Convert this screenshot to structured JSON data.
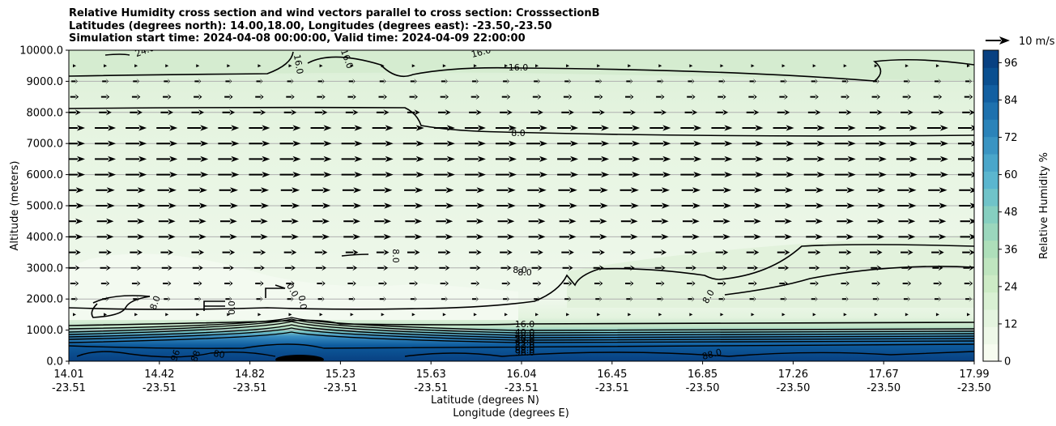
{
  "titles": {
    "line1": "Relative Humidity cross section and wind vectors parallel to cross section: CrosssectionB",
    "line2": "Latitudes (degrees north): 14.00,18.00, Longitudes (degrees east): -23.50,-23.50",
    "line3": "Simulation start time: 2024-04-08 00:00:00, Valid time: 2024-04-09 22:00:00"
  },
  "chart_data": {
    "type": "heatmap",
    "xlabel": "Latitude (degrees N)",
    "xlabel2": "Longitude (degrees E)",
    "ylabel": "Altitude (meters)",
    "ylim": [
      0,
      10000
    ],
    "grid": "horizontal",
    "x_ticks": [
      {
        "lat": "14.01",
        "lon": "-23.51"
      },
      {
        "lat": "14.42",
        "lon": "-23.51"
      },
      {
        "lat": "14.82",
        "lon": "-23.51"
      },
      {
        "lat": "15.23",
        "lon": "-23.51"
      },
      {
        "lat": "15.63",
        "lon": "-23.51"
      },
      {
        "lat": "16.04",
        "lon": "-23.51"
      },
      {
        "lat": "16.45",
        "lon": "-23.51"
      },
      {
        "lat": "16.85",
        "lon": "-23.50"
      },
      {
        "lat": "17.26",
        "lon": "-23.50"
      },
      {
        "lat": "17.67",
        "lon": "-23.50"
      },
      {
        "lat": "17.99",
        "lon": "-23.50"
      }
    ],
    "y_ticks": [
      "0.0",
      "1000.0",
      "2000.0",
      "3000.0",
      "4000.0",
      "5000.0",
      "6000.0",
      "7000.0",
      "8000.0",
      "9000.0",
      "10000.0"
    ],
    "colorbar": {
      "label": "Relative Humidity %",
      "ticks": [
        "0",
        "12",
        "24",
        "36",
        "48",
        "60",
        "72",
        "84",
        "96"
      ],
      "range": [
        0,
        100
      ]
    },
    "quiver_key": "10 m/s",
    "contour_labels": [
      "24.0",
      "16.0",
      "16.0",
      "16.0",
      "16.0",
      "8.0",
      "8.0",
      "8.0",
      "8.0",
      "8.0",
      "0.0",
      "0.0",
      "0.0",
      "8.0",
      "16.0",
      "40.0",
      "48.0",
      "56.0",
      "64.0",
      "72.0",
      "80.0",
      "88.0",
      "96.0",
      "80",
      "88",
      "96",
      "88.0"
    ],
    "wind": {
      "levels_m": [
        9500,
        9000,
        8500,
        8000,
        7500,
        7000,
        6500,
        6000,
        5500,
        5000,
        4500,
        4000,
        3500,
        3000,
        2500,
        2000,
        1500
      ],
      "speed_ms": [
        2,
        3,
        4,
        6,
        10,
        10,
        10,
        10,
        9,
        9,
        8,
        8,
        6,
        5,
        4,
        3,
        2
      ]
    }
  }
}
